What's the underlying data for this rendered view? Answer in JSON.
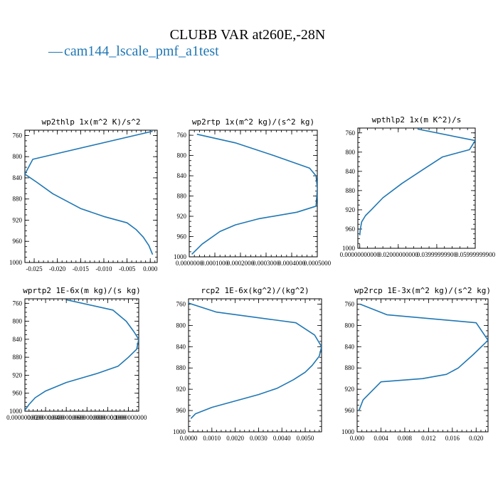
{
  "figure_title": "CLUBB VAR at260E,-28N",
  "legend": {
    "marker": "—",
    "label": "cam144_lscale_pmf_a1test",
    "color": "#1f77b4"
  },
  "chart_data": [
    {
      "type": "line",
      "title": "wp2thlp  1x(m^2 K)/s^2",
      "xlim": [
        -0.027,
        0.0015
      ],
      "ylim": [
        1000,
        750
      ],
      "xticks": [
        -0.025,
        -0.02,
        -0.015,
        -0.01,
        -0.005,
        0.0
      ],
      "xtick_labels": [
        "-0.025",
        "-0.020",
        "-0.015",
        "-0.010",
        "-0.005",
        "0.000"
      ],
      "yticks": [
        760,
        800,
        840,
        880,
        920,
        960,
        1000
      ],
      "ytick_labels": [
        "760",
        "800",
        "840",
        "880",
        "920",
        "960",
        "1000"
      ],
      "series": [
        {
          "color": "#1f77b4",
          "x": [
            0.0005,
            -0.0253,
            -0.027,
            -0.0245,
            -0.021,
            -0.015,
            -0.01,
            -0.005,
            -0.003,
            -0.0015,
            -0.0003,
            0.0005
          ],
          "y": [
            752,
            805,
            833,
            848,
            870,
            898,
            913,
            925,
            938,
            952,
            968,
            985
          ]
        }
      ]
    },
    {
      "type": "line",
      "title": "wp2rtp  1x(m^2 kg)/(s^2 kg)",
      "xlim": [
        0.0,
        0.0005
      ],
      "ylim": [
        1000,
        750
      ],
      "xticks": [
        0.0,
        0.0001,
        0.0002,
        0.0003,
        0.0004,
        0.0005
      ],
      "xtick_labels": [
        "0.0000000",
        "0.0001000",
        "0.0002000",
        "0.0003000",
        "0.0004000",
        "0.0005000"
      ],
      "yticks": [
        760,
        800,
        840,
        880,
        920,
        960,
        1000
      ],
      "yticks_labels_note": "",
      "ytick_labels": [
        "760",
        "800",
        "840",
        "880",
        "920",
        "960",
        "1000"
      ],
      "series": [
        {
          "color": "#1f77b4",
          "x": [
            3e-05,
            0.00018,
            0.00033,
            0.00047,
            0.000495,
            0.0005,
            0.000495,
            0.00042,
            0.00027,
            0.00018,
            0.00012,
            5e-05,
            1e-05
          ],
          "y": [
            758,
            775,
            800,
            825,
            840,
            865,
            900,
            912,
            925,
            937,
            950,
            975,
            995
          ]
        }
      ]
    },
    {
      "type": "line",
      "title": "wpthlp2  1x(m K^2)/s",
      "xlim": [
        -0.001,
        0.06
      ],
      "ylim": [
        1000,
        750
      ],
      "xticks": [
        0.0,
        0.02,
        0.04,
        0.06
      ],
      "xtick_labels": [
        "0.00000000000",
        "0.02000000000",
        "0.03999999900",
        "0.05999999900"
      ],
      "yticks": [
        760,
        800,
        840,
        880,
        920,
        960,
        1000
      ],
      "ytick_labels": [
        "760",
        "800",
        "840",
        "880",
        "920",
        "960",
        "1000"
      ],
      "series": [
        {
          "color": "#1f77b4",
          "x": [
            0.03,
            0.06,
            0.057,
            0.043,
            0.033,
            0.022,
            0.012,
            0.006,
            0.003,
            0.001,
            0.0003,
            0.0
          ],
          "y": [
            752,
            776,
            795,
            810,
            836,
            865,
            895,
            920,
            932,
            945,
            960,
            973
          ]
        }
      ]
    },
    {
      "type": "line",
      "title": "wprtp2  1E-6x(m kg)/(s kg)",
      "xlim": [
        0.0,
        0.11
      ],
      "ylim": [
        1000,
        750
      ],
      "xticks": [
        0.0,
        0.02,
        0.04,
        0.06,
        0.08,
        0.1
      ],
      "xtick_labels": [
        "0.0000000000",
        "0.0200000000",
        "0.0400000000",
        "0.0600000000",
        "0.0800000000",
        "0.1000000000"
      ],
      "yticks": [
        760,
        800,
        840,
        880,
        920,
        960,
        1000
      ],
      "ytick_labels": [
        "760",
        "800",
        "840",
        "880",
        "920",
        "960",
        "1000"
      ],
      "series": [
        {
          "color": "#1f77b4",
          "x": [
            0.04,
            0.085,
            0.098,
            0.105,
            0.11,
            0.108,
            0.1,
            0.09,
            0.07,
            0.04,
            0.02,
            0.01,
            0.004,
            0.0
          ],
          "y": [
            752,
            775,
            800,
            822,
            840,
            862,
            880,
            900,
            916,
            936,
            955,
            970,
            985,
            998
          ]
        }
      ]
    },
    {
      "type": "line",
      "title": "rcp2  1E-6x(kg^2)/(kg^2)",
      "xlim": [
        0.0,
        0.0057
      ],
      "ylim": [
        1000,
        750
      ],
      "xticks": [
        0.0,
        0.001,
        0.002,
        0.003,
        0.004,
        0.005
      ],
      "xtick_labels": [
        "0.0000",
        "0.0010",
        "0.0020",
        "0.0030",
        "0.0040",
        "0.0050"
      ],
      "yticks": [
        760,
        800,
        840,
        880,
        920,
        960,
        1000
      ],
      "ytick_labels": [
        "760",
        "800",
        "840",
        "880",
        "920",
        "960",
        "1000"
      ],
      "series": [
        {
          "color": "#1f77b4",
          "x": [
            0.0,
            0.0012,
            0.0046,
            0.0054,
            0.0057,
            0.0056,
            0.0053,
            0.005,
            0.0045,
            0.0038,
            0.003,
            0.002,
            0.001,
            0.0003,
            0.0001
          ],
          "y": [
            758,
            775,
            795,
            818,
            840,
            858,
            875,
            888,
            902,
            918,
            930,
            942,
            954,
            966,
            975
          ]
        }
      ]
    },
    {
      "type": "line",
      "title": "wp2rcp  1E-3x(m^2 kg)/(s^2 kg)",
      "xlim": [
        0.0,
        0.022
      ],
      "ylim": [
        1000,
        750
      ],
      "xticks": [
        0.0,
        0.004,
        0.008,
        0.012,
        0.016,
        0.02
      ],
      "xtick_labels": [
        "0.000",
        "0.004",
        "0.008",
        "0.012",
        "0.016",
        "0.020"
      ],
      "yticks": [
        760,
        800,
        840,
        880,
        920,
        960,
        1000
      ],
      "ytick_labels": [
        "760",
        "800",
        "840",
        "880",
        "920",
        "960",
        "1000"
      ],
      "series": [
        {
          "color": "#1f77b4",
          "x": [
            0.0005,
            0.005,
            0.02,
            0.022,
            0.0195,
            0.017,
            0.015,
            0.011,
            0.004,
            0.001,
            0.0003
          ],
          "y": [
            760,
            780,
            795,
            828,
            855,
            880,
            892,
            900,
            906,
            940,
            960
          ]
        }
      ]
    }
  ]
}
